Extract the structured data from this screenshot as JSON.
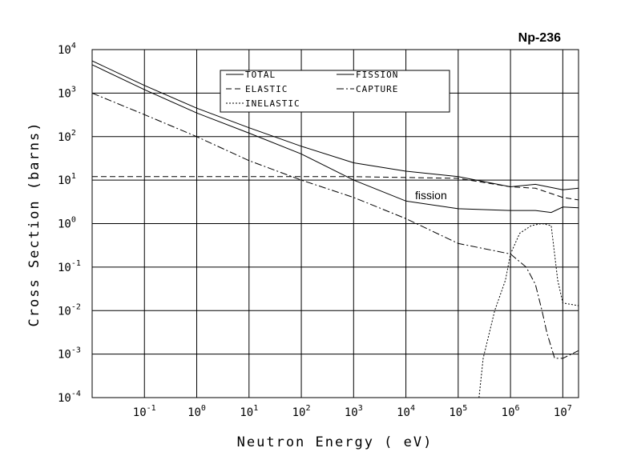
{
  "chart_data": {
    "type": "line",
    "title": "Np-236",
    "xlabel": "Neutron Energy ( eV)",
    "ylabel": "Cross Section (barns)",
    "x_scale": "log",
    "y_scale": "log",
    "xlim": [
      0.01,
      20000000
    ],
    "ylim": [
      0.0001,
      10000
    ],
    "grid": true,
    "legend_position": "top-center",
    "x_ticks": [
      {
        "base": "10",
        "exp": "-1",
        "value": 0.1
      },
      {
        "base": "10",
        "exp": "0",
        "value": 1
      },
      {
        "base": "10",
        "exp": "1",
        "value": 10
      },
      {
        "base": "10",
        "exp": "2",
        "value": 100
      },
      {
        "base": "10",
        "exp": "3",
        "value": 1000
      },
      {
        "base": "10",
        "exp": "4",
        "value": 10000
      },
      {
        "base": "10",
        "exp": "5",
        "value": 100000
      },
      {
        "base": "10",
        "exp": "6",
        "value": 1000000
      },
      {
        "base": "10",
        "exp": "7",
        "value": 10000000
      }
    ],
    "y_ticks": [
      {
        "base": "10",
        "exp": "4",
        "value": 10000
      },
      {
        "base": "10",
        "exp": "3",
        "value": 1000
      },
      {
        "base": "10",
        "exp": "2",
        "value": 100
      },
      {
        "base": "10",
        "exp": "1",
        "value": 10
      },
      {
        "base": "10",
        "exp": "0",
        "value": 1
      },
      {
        "base": "10",
        "exp": "-1",
        "value": 0.1
      },
      {
        "base": "10",
        "exp": "-2",
        "value": 0.01
      },
      {
        "base": "10",
        "exp": "-3",
        "value": 0.001
      },
      {
        "base": "10",
        "exp": "-4",
        "value": 0.0001
      }
    ],
    "series": [
      {
        "name": "TOTAL",
        "dash": "solid",
        "x": [
          0.01,
          0.1,
          1,
          10,
          100,
          1000,
          10000,
          100000,
          1000000,
          3000000,
          10000000,
          20000000
        ],
        "y": [
          5500,
          1500,
          450,
          160,
          60,
          25,
          16,
          12,
          7,
          8,
          6,
          6.5
        ]
      },
      {
        "name": "ELASTIC",
        "dash": "dashed",
        "x": [
          0.01,
          1,
          1000,
          100000,
          1000000,
          3000000,
          10000000,
          20000000
        ],
        "y": [
          12,
          12,
          12,
          11,
          7,
          6.5,
          4,
          3.5
        ]
      },
      {
        "name": "INELASTIC",
        "dash": "dotted",
        "x": [
          250000,
          300000,
          500000,
          800000,
          1000000,
          1500000,
          2500000,
          4000000,
          6000000,
          8000000,
          10000000,
          20000000
        ],
        "y": [
          0.0001,
          0.0008,
          0.01,
          0.05,
          0.2,
          0.6,
          0.9,
          1,
          0.9,
          0.05,
          0.015,
          0.013
        ]
      },
      {
        "name": "FISSION",
        "dash": "solid",
        "x": [
          0.01,
          0.1,
          1,
          10,
          100,
          1000,
          10000,
          100000,
          1000000,
          3000000,
          6000000,
          10000000,
          20000000
        ],
        "y": [
          4500,
          1200,
          350,
          120,
          40,
          10,
          3.3,
          2.2,
          2,
          2,
          1.8,
          2.4,
          2.3
        ]
      },
      {
        "name": "CAPTURE",
        "dash": "dashdot",
        "x": [
          0.01,
          0.1,
          1,
          10,
          100,
          1000,
          10000,
          100000,
          1000000,
          2000000,
          3000000,
          4000000,
          5000000,
          7000000,
          10000000,
          20000000
        ],
        "y": [
          1000,
          320,
          100,
          28,
          10,
          4,
          1.3,
          0.35,
          0.2,
          0.1,
          0.04,
          0.01,
          0.003,
          0.0008,
          0.0008,
          0.0012
        ]
      }
    ],
    "annotations": [
      {
        "text": "fission",
        "x": 15000,
        "y": 4.5
      }
    ]
  }
}
